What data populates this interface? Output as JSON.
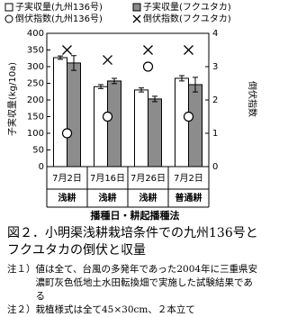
{
  "chart_data": {
    "type": "bar",
    "categories": [
      "7月2日",
      "7月16日",
      "7月26日",
      "7月2日"
    ],
    "category_groups": [
      "浅耕",
      "浅耕",
      "浅耕",
      "普通耕"
    ],
    "xlabel": "播種日・耕起播種法",
    "ylabel": "子実収量(kg/10a)",
    "y2label": "倒伏指数",
    "ylim": [
      0,
      400
    ],
    "yticks": [
      0,
      50,
      100,
      150,
      200,
      250,
      300,
      350,
      400
    ],
    "y2lim": [
      0,
      4
    ],
    "y2ticks": [
      0,
      1,
      2,
      3,
      4
    ],
    "series": [
      {
        "name": "子実収量(九州136号)",
        "color": "#ffffff",
        "mark": "bar",
        "values": [
          327,
          240,
          230,
          265
        ],
        "errors": [
          5,
          6,
          6,
          8
        ]
      },
      {
        "name": "子実収量(フクユタカ)",
        "color": "#8c8c8c",
        "mark": "bar",
        "values": [
          311,
          257,
          203,
          246
        ],
        "errors": [
          22,
          8,
          8,
          22
        ]
      },
      {
        "name": "倒伏指数(九州136号)",
        "color": "#ffffff",
        "mark": "circle",
        "axis": "y2",
        "values": [
          1.0,
          1.5,
          3.0,
          1.5
        ]
      },
      {
        "name": "倒伏指数(フクユタカ)",
        "color": "#000000",
        "mark": "cross",
        "axis": "y2",
        "values": [
          3.5,
          3.2,
          3.5,
          3.5
        ]
      }
    ]
  },
  "caption": "図２．小明渠浅耕栽培条件での九州136号とフクユタカの倒伏と収量",
  "notes": [
    {
      "label": "注１）",
      "text": "値は全て、台風の多発年であった2004年に三重県安濃町灰色低地土水田転換畑で実施した試験結果である"
    },
    {
      "label": "注２）",
      "text": "栽植様式は全て45×30cm、２本立て"
    }
  ]
}
